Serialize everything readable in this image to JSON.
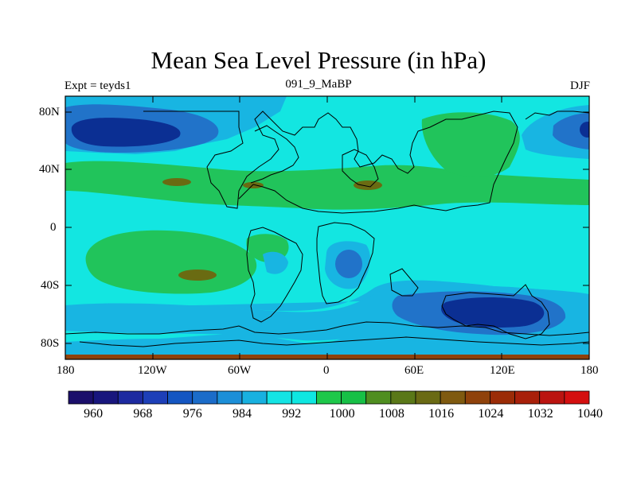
{
  "title": "Mean Sea Level Pressure (in hPa)",
  "left_label": "Expt = teyds1",
  "center_label": "091_9_MaBP",
  "right_label": "DJF",
  "lat_labels": [
    "80N",
    "40N",
    "0",
    "40S",
    "80S"
  ],
  "lon_labels": [
    "180",
    "120W",
    "60W",
    "0",
    "60E",
    "120E",
    "180"
  ],
  "colorbar": {
    "levels": [
      "960",
      "968",
      "976",
      "984",
      "992",
      "1000",
      "1008",
      "1016",
      "1024",
      "1032",
      "1040"
    ],
    "colors": [
      "#1b0f6b",
      "#18167d",
      "#1d2aa0",
      "#1d3fb8",
      "#1456c2",
      "#1b6cc9",
      "#1c8fd8",
      "#18b1e0",
      "#14e4e4",
      "#0fe7e1",
      "#1ec84a",
      "#17c046",
      "#4f8e20",
      "#5a7818",
      "#6a6a14",
      "#7f5a10",
      "#8f420b",
      "#9b2c07",
      "#a8200a",
      "#bb1410",
      "#d40f0f"
    ]
  },
  "palette": {
    "cyan": "#13e6e1",
    "light_blue": "#18b5e2",
    "mid_blue": "#2173c9",
    "dark_blue": "#0b2f93",
    "green": "#21c45b",
    "olive": "#6a6b12",
    "coast": "#000000"
  }
}
